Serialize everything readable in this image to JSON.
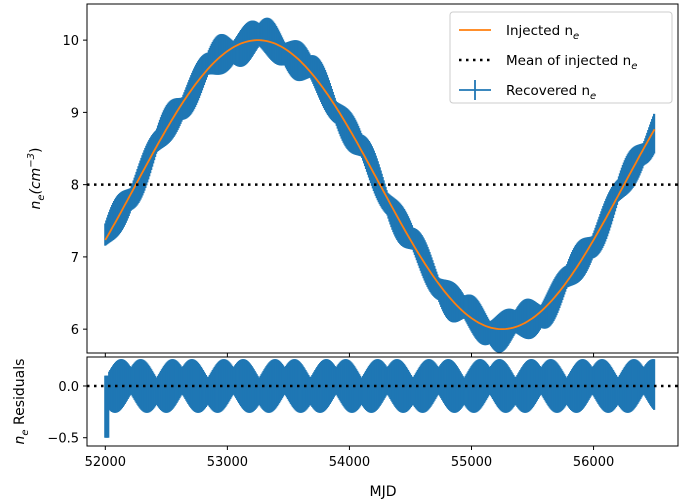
{
  "chart_data": [
    {
      "type": "line",
      "panel": "main",
      "ylabel_main": "n",
      "ylabel_sub": "e",
      "ylabel_unit": "(cm",
      "ylabel_unit_sup": "−3",
      "ylabel_unit_close": ")",
      "xlim": [
        51850,
        56700
      ],
      "ylim": [
        5.67,
        10.5
      ],
      "yticks": [
        "6",
        "7",
        "8",
        "9",
        "10"
      ],
      "yticks_values": [
        6,
        7,
        8,
        9,
        10
      ],
      "xticks_values": [
        52000,
        53000,
        54000,
        55000,
        56000
      ],
      "grid": false,
      "legend_position": "top-right",
      "series": [
        {
          "name": "Injected n",
          "name_sub": "e",
          "style": "line",
          "color": "#ff7f0e",
          "function": {
            "kind": "sine",
            "mean": 8.0,
            "amplitude": 2.0,
            "period": 4000,
            "peak_x": 53250
          },
          "x_range": [
            52000,
            56500
          ]
        },
        {
          "name": "Mean of injected n",
          "name_sub": "e",
          "style": "dotted",
          "color": "#000000",
          "value": 8.0
        },
        {
          "name": "Recovered n",
          "name_sub": "e",
          "style": "errorbar",
          "color": "#1f77b4",
          "x_range": [
            52000,
            56500
          ],
          "error_envelope_note": "dense error bars around injected curve",
          "error_amplitude": 0.28,
          "error_period": 420
        }
      ]
    },
    {
      "type": "line",
      "panel": "residuals",
      "ylabel_main": "n",
      "ylabel_sub": "e",
      "ylabel_rest": " Residuals",
      "xlabel": "MJD",
      "xlim": [
        51850,
        56700
      ],
      "ylim": [
        -0.58,
        0.28
      ],
      "yticks": [
        "0.0",
        "−0.5"
      ],
      "yticks_values": [
        0.0,
        -0.5
      ],
      "xticks": [
        "52000",
        "53000",
        "54000",
        "55000",
        "56000"
      ],
      "xticks_values": [
        52000,
        53000,
        54000,
        55000,
        56000
      ],
      "series": [
        {
          "name": "",
          "style": "dotted",
          "color": "#000000",
          "value": 0.0
        },
        {
          "name": "",
          "style": "errorbar",
          "color": "#1f77b4",
          "x_range": [
            52000,
            56500
          ],
          "error_amplitude": 0.25,
          "error_period": 420
        }
      ]
    }
  ]
}
